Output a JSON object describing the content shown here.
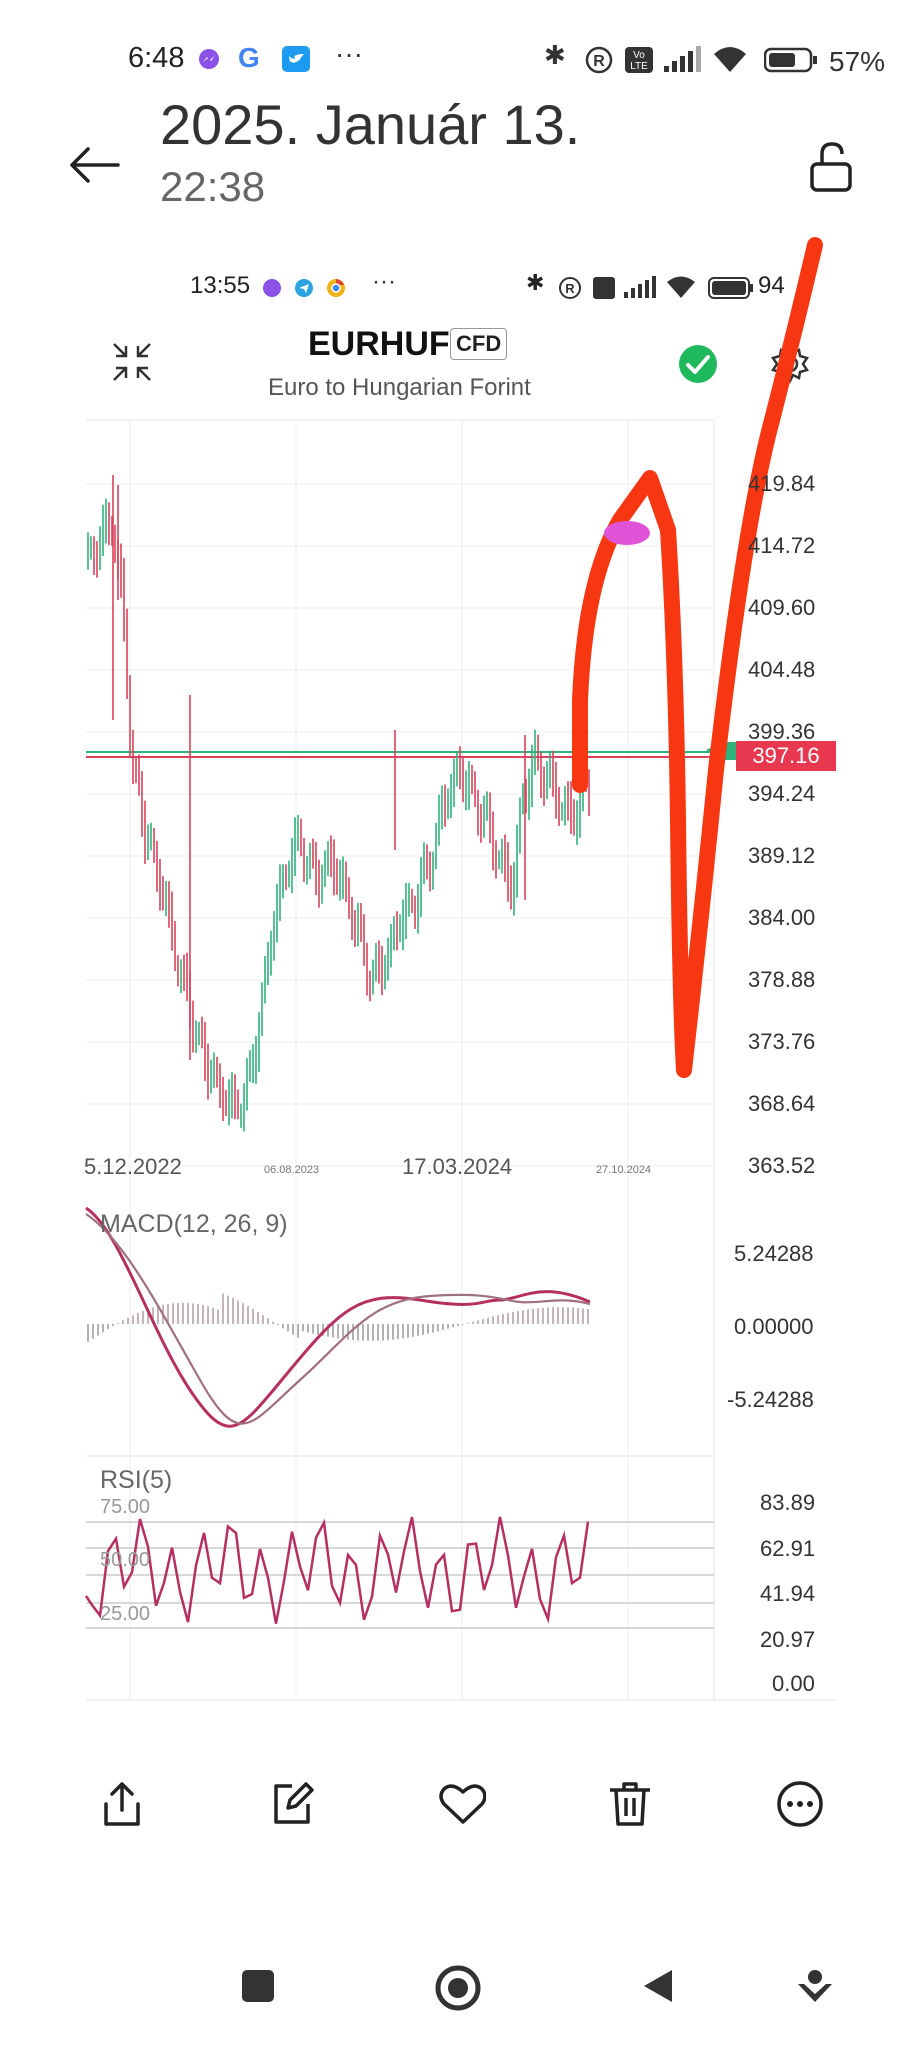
{
  "status_bar": {
    "time": "6:48",
    "battery": "57%",
    "icons": [
      "messenger-icon",
      "google-icon",
      "twitter-icon",
      "more-dots-icon",
      "bluetooth-icon",
      "registered-icon",
      "volte-icon",
      "signal-icon",
      "wifi-icon",
      "battery-icon"
    ]
  },
  "header": {
    "title": "2025. Január 13.",
    "subtitle": "22:38"
  },
  "screenshot": {
    "status_time": "13:55",
    "battery": "94",
    "symbol": "EURHUF",
    "badge": "CFD",
    "description": "Euro to Hungarian Forint",
    "price_label": "397.16",
    "y_ticks": [
      "419.84",
      "414.72",
      "409.60",
      "404.48",
      "399.36",
      "394.24",
      "389.12",
      "384.00",
      "378.88",
      "373.76",
      "368.64",
      "363.52"
    ],
    "x_ticks": [
      "5.12.2022",
      "06.08.2023",
      "17.03.2024",
      "27.10.2024"
    ],
    "macd": {
      "label": "MACD(12, 26, 9)",
      "ticks": [
        "5.24288",
        "0.00000",
        "-5.24288"
      ]
    },
    "rsi": {
      "label": "RSI(5)",
      "levels": [
        "75.00",
        "50.00",
        "25.00"
      ],
      "ticks": [
        "83.89",
        "62.91",
        "41.94",
        "20.97",
        "0.00"
      ]
    },
    "colors": {
      "up": "#2fb27a",
      "down": "#d9425a",
      "drawing": "#f63712",
      "marker": "#e052d6",
      "macd": "#b5305f"
    }
  },
  "toolbar": [
    "share-icon",
    "edit-icon",
    "favorite-icon",
    "delete-icon",
    "more-icon"
  ],
  "nav_bar": [
    "recents-button",
    "home-button",
    "back-button",
    "assistant-button"
  ]
}
